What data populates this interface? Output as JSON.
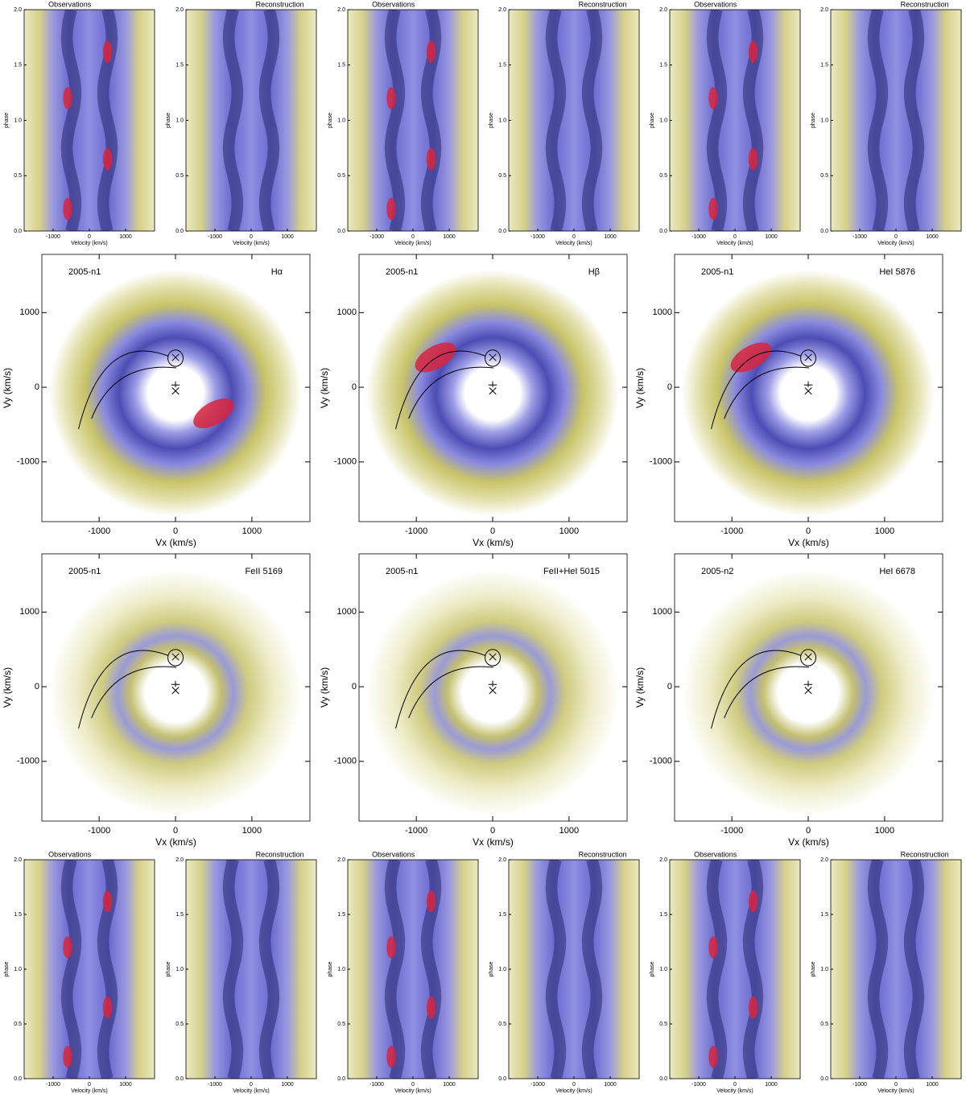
{
  "chart_data": [
    {
      "type": "trailed-spectrum",
      "title": "Observations",
      "xlabel": "Velocity (km/s)",
      "ylabel": "phase",
      "xlim": [
        -1800,
        1800
      ],
      "ylim": [
        0,
        2
      ],
      "xticks": [
        -1000,
        0,
        1000
      ],
      "yticks": [
        {
          "value": 0,
          "label": "0.0"
        },
        {
          "value": 0.5,
          "label": "0.5"
        },
        {
          "value": 1,
          "label": "1.0"
        },
        {
          "value": 1.5,
          "label": "1.5"
        },
        {
          "value": 2,
          "label": "2.0"
        }
      ]
    },
    {
      "type": "trailed-spectrum",
      "title": "Reconstruction",
      "xlabel": "Velocity (km/s)",
      "ylabel": "phase",
      "xlim": [
        -1800,
        1800
      ],
      "ylim": [
        0,
        2
      ],
      "xticks": [
        -1000,
        0,
        1000
      ],
      "yticks": [
        {
          "value": 0,
          "label": "0.0"
        },
        {
          "value": 0.5,
          "label": "0.5"
        },
        {
          "value": 1,
          "label": "1.0"
        },
        {
          "value": 1.5,
          "label": "1.5"
        },
        {
          "value": 2,
          "label": "2.0"
        }
      ]
    },
    {
      "type": "trailed-spectrum",
      "title": "Observations",
      "xlabel": "Velocity (km/s)",
      "ylabel": "phase",
      "xlim": [
        -1800,
        1800
      ],
      "ylim": [
        0,
        2
      ],
      "xticks": [
        -1000,
        0,
        1000
      ],
      "yticks": [
        {
          "value": 0,
          "label": "0.0"
        },
        {
          "value": 0.5,
          "label": "0.5"
        },
        {
          "value": 1,
          "label": "1.0"
        },
        {
          "value": 1.5,
          "label": "1.5"
        },
        {
          "value": 2,
          "label": "2.0"
        }
      ]
    },
    {
      "type": "trailed-spectrum",
      "title": "Reconstruction",
      "xlabel": "Velocity (km/s)",
      "ylabel": "phase",
      "xlim": [
        -1800,
        1800
      ],
      "ylim": [
        0,
        2
      ],
      "xticks": [
        -1000,
        0,
        1000
      ],
      "yticks": [
        {
          "value": 0,
          "label": "0.0"
        },
        {
          "value": 0.5,
          "label": "0.5"
        },
        {
          "value": 1,
          "label": "1.0"
        },
        {
          "value": 1.5,
          "label": "1.5"
        },
        {
          "value": 2,
          "label": "2.0"
        }
      ]
    },
    {
      "type": "trailed-spectrum",
      "title": "Observations",
      "xlabel": "Velocity (km/s)",
      "ylabel": "phase",
      "xlim": [
        -1800,
        1800
      ],
      "ylim": [
        0,
        2
      ],
      "xticks": [
        -1000,
        0,
        1000
      ],
      "yticks": [
        {
          "value": 0,
          "label": "0.0"
        },
        {
          "value": 0.5,
          "label": "0.5"
        },
        {
          "value": 1,
          "label": "1.0"
        },
        {
          "value": 1.5,
          "label": "1.5"
        },
        {
          "value": 2,
          "label": "2.0"
        }
      ]
    },
    {
      "type": "trailed-spectrum",
      "title": "Reconstruction",
      "xlabel": "Velocity (km/s)",
      "ylabel": "phase",
      "xlim": [
        -1800,
        1800
      ],
      "ylim": [
        0,
        2
      ],
      "xticks": [
        -1000,
        0,
        1000
      ],
      "yticks": [
        {
          "value": 0,
          "label": "0.0"
        },
        {
          "value": 0.5,
          "label": "0.5"
        },
        {
          "value": 1,
          "label": "1.0"
        },
        {
          "value": 1.5,
          "label": "1.5"
        },
        {
          "value": 2,
          "label": "2.0"
        }
      ]
    },
    {
      "type": "tomogram",
      "title": "2005-n1",
      "line": "Hα",
      "xlabel": "Vx (km/s)",
      "ylabel": "Vy (km/s)",
      "xlim": [
        -1750,
        1760
      ],
      "ylim": [
        -1800,
        1780
      ],
      "xticks": [
        -1000,
        0,
        1000
      ],
      "yticks": [
        -1000,
        0,
        1000
      ]
    },
    {
      "type": "tomogram",
      "title": "2005-n1",
      "line": "Hβ",
      "xlabel": "Vx (km/s)",
      "ylabel": "Vy (km/s)",
      "xlim": [
        -1750,
        1760
      ],
      "ylim": [
        -1800,
        1780
      ],
      "xticks": [
        -1000,
        0,
        1000
      ],
      "yticks": [
        -1000,
        0,
        1000
      ]
    },
    {
      "type": "tomogram",
      "title": "2005-n1",
      "line": "HeI 5876",
      "xlabel": "Vx (km/s)",
      "ylabel": "Vy (km/s)",
      "xlim": [
        -1750,
        1760
      ],
      "ylim": [
        -1800,
        1780
      ],
      "xticks": [
        -1000,
        0,
        1000
      ],
      "yticks": [
        -1000,
        0,
        1000
      ]
    },
    {
      "type": "tomogram",
      "title": "2005-n1",
      "line": "FeII 5169",
      "xlabel": "Vx (km/s)",
      "ylabel": "Vy (km/s)",
      "xlim": [
        -1750,
        1760
      ],
      "ylim": [
        -1800,
        1780
      ],
      "xticks": [
        -1000,
        0,
        1000
      ],
      "yticks": [
        -1000,
        0,
        1000
      ]
    },
    {
      "type": "tomogram",
      "title": "2005-n1",
      "line": "FeII+HeI 5015",
      "xlabel": "Vx (km/s)",
      "ylabel": "Vy (km/s)",
      "xlim": [
        -1750,
        1760
      ],
      "ylim": [
        -1800,
        1780
      ],
      "xticks": [
        -1000,
        0,
        1000
      ],
      "yticks": [
        -1000,
        0,
        1000
      ]
    },
    {
      "type": "tomogram",
      "title": "2005-n2",
      "line": "HeI 6678",
      "xlabel": "Vx (km/s)",
      "ylabel": "Vy (km/s)",
      "xlim": [
        -1750,
        1760
      ],
      "ylim": [
        -1800,
        1780
      ],
      "xticks": [
        -1000,
        0,
        1000
      ],
      "yticks": [
        -1000,
        0,
        1000
      ]
    },
    {
      "type": "trailed-spectrum",
      "title": "Observations",
      "xlabel": "Velocity (km/s)",
      "ylabel": "phase",
      "xlim": [
        -1800,
        1800
      ],
      "ylim": [
        0,
        2
      ],
      "xticks": [
        -1000,
        0,
        1000
      ],
      "yticks": [
        {
          "value": 0,
          "label": "0.0"
        },
        {
          "value": 0.5,
          "label": "0.5"
        },
        {
          "value": 1,
          "label": "1.0"
        },
        {
          "value": 1.5,
          "label": "1.5"
        },
        {
          "value": 2,
          "label": "2.0"
        }
      ]
    },
    {
      "type": "trailed-spectrum",
      "title": "Reconstruction",
      "xlabel": "Velocity (km/s)",
      "ylabel": "phase",
      "xlim": [
        -1800,
        1800
      ],
      "ylim": [
        0,
        2
      ],
      "xticks": [
        -1000,
        0,
        1000
      ],
      "yticks": [
        {
          "value": 0,
          "label": "0.0"
        },
        {
          "value": 0.5,
          "label": "0.5"
        },
        {
          "value": 1,
          "label": "1.0"
        },
        {
          "value": 1.5,
          "label": "1.5"
        },
        {
          "value": 2,
          "label": "2.0"
        }
      ]
    },
    {
      "type": "trailed-spectrum",
      "title": "Observations",
      "xlabel": "Velocity (km/s)",
      "ylabel": "phase",
      "xlim": [
        -1800,
        1800
      ],
      "ylim": [
        0,
        2
      ],
      "xticks": [
        -1000,
        0,
        1000
      ],
      "yticks": [
        {
          "value": 0,
          "label": "0.0"
        },
        {
          "value": 0.5,
          "label": "0.5"
        },
        {
          "value": 1,
          "label": "1.0"
        },
        {
          "value": 1.5,
          "label": "1.5"
        },
        {
          "value": 2,
          "label": "2.0"
        }
      ]
    },
    {
      "type": "trailed-spectrum",
      "title": "Reconstruction",
      "xlabel": "Velocity (km/s)",
      "ylabel": "phase",
      "xlim": [
        -1800,
        1800
      ],
      "ylim": [
        0,
        2
      ],
      "xticks": [
        -1000,
        0,
        1000
      ],
      "yticks": [
        {
          "value": 0,
          "label": "0.0"
        },
        {
          "value": 0.5,
          "label": "0.5"
        },
        {
          "value": 1,
          "label": "1.0"
        },
        {
          "value": 1.5,
          "label": "1.5"
        },
        {
          "value": 2,
          "label": "2.0"
        }
      ]
    },
    {
      "type": "trailed-spectrum",
      "title": "Observations",
      "xlabel": "Velocity (km/s)",
      "ylabel": "phase",
      "xlim": [
        -1800,
        1800
      ],
      "ylim": [
        0,
        2
      ],
      "xticks": [
        -1000,
        0,
        1000
      ],
      "yticks": [
        {
          "value": 0,
          "label": "0.0"
        },
        {
          "value": 0.5,
          "label": "0.5"
        },
        {
          "value": 1,
          "label": "1.0"
        },
        {
          "value": 1.5,
          "label": "1.5"
        },
        {
          "value": 2,
          "label": "2.0"
        }
      ]
    },
    {
      "type": "trailed-spectrum",
      "title": "Reconstruction",
      "xlabel": "Velocity (km/s)",
      "ylabel": "phase",
      "xlim": [
        -1800,
        1800
      ],
      "ylim": [
        0,
        2
      ],
      "xticks": [
        -1000,
        0,
        1000
      ],
      "yticks": [
        {
          "value": 0,
          "label": "0.0"
        },
        {
          "value": 0.5,
          "label": "0.5"
        },
        {
          "value": 1,
          "label": "1.0"
        },
        {
          "value": 1.5,
          "label": "1.5"
        },
        {
          "value": 2,
          "label": "2.0"
        }
      ]
    }
  ]
}
